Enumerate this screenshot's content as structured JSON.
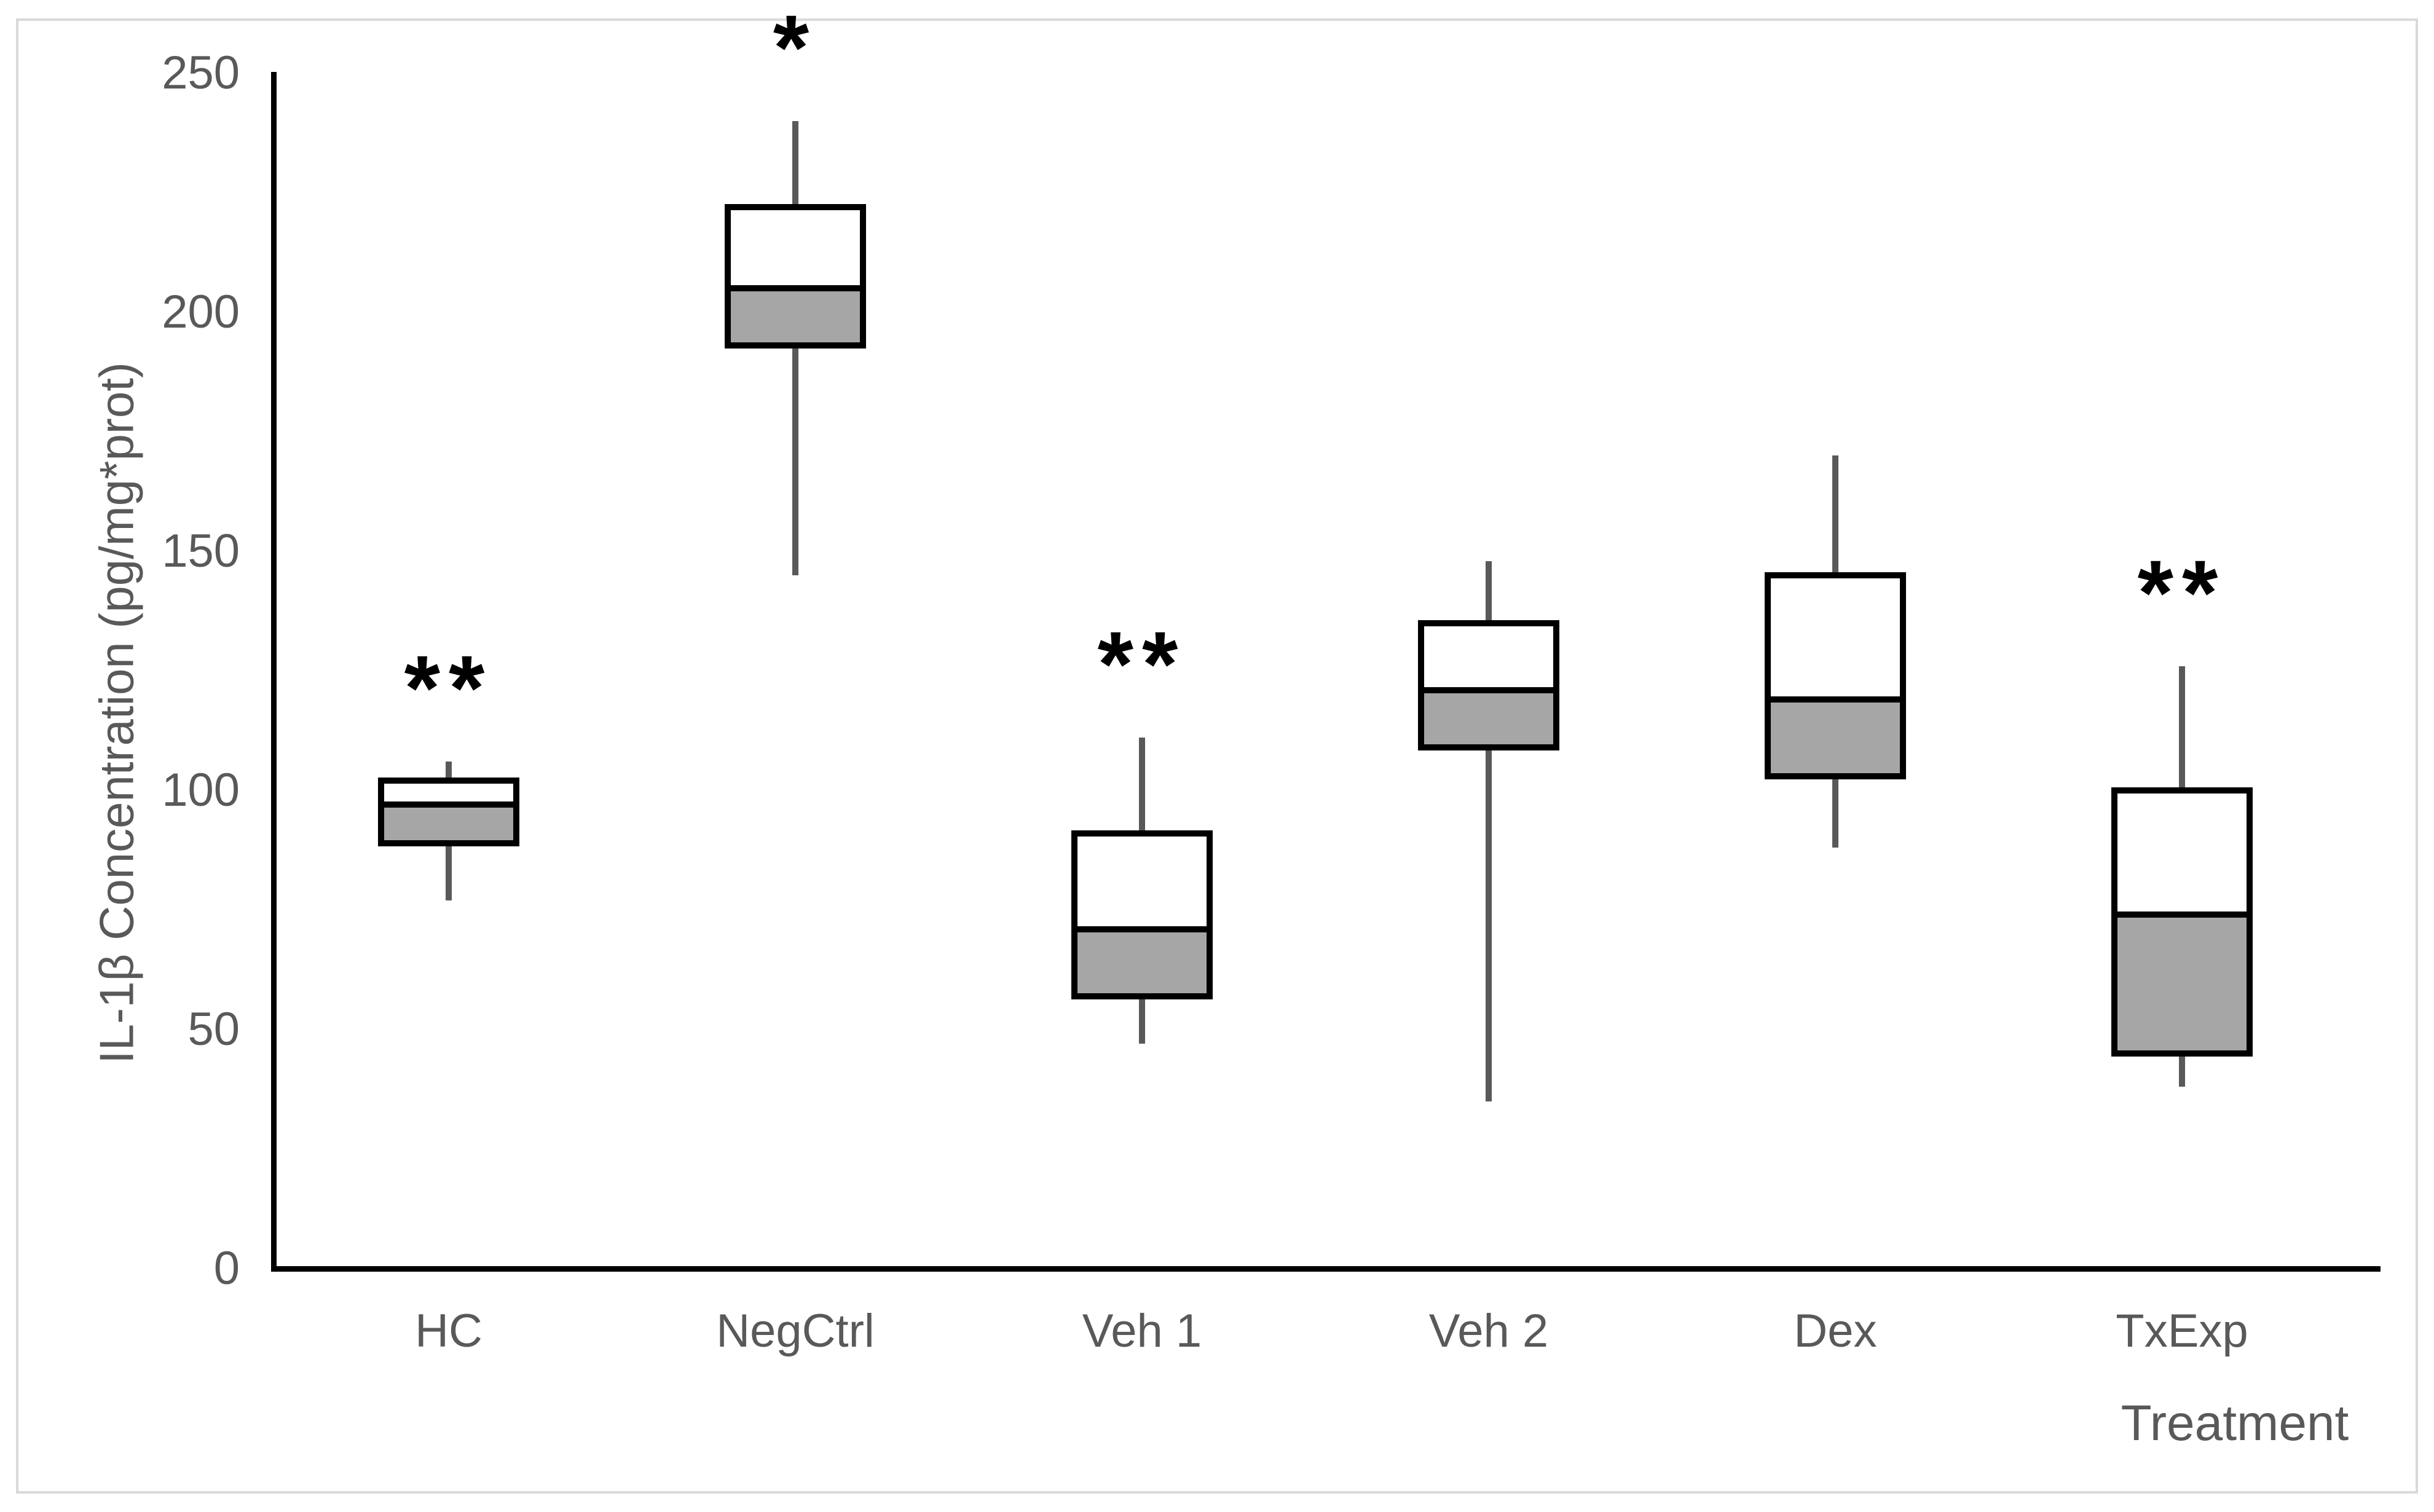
{
  "figure": {
    "background": "#ffffff",
    "border_color": "#d9d9d9"
  },
  "colors": {
    "axis": "#000000",
    "label_text": "#595959",
    "whisker": "#595959",
    "box_border": "#000000",
    "box_fill_lower": "#a6a6a6",
    "box_fill_upper": "#ffffff",
    "significance_star": "#000000"
  },
  "chart_data": {
    "type": "boxplot",
    "title": "",
    "xlabel": "Treatment",
    "ylabel": "IL-1β Concentration (pg/mg*prot)",
    "ylim": [
      0,
      250
    ],
    "yticks": [
      0,
      50,
      100,
      150,
      200,
      250
    ],
    "grid": false,
    "legend": false,
    "whisker_caps": false,
    "categories": [
      "HC",
      "NegCtrl",
      "Veh 1",
      "Veh 2",
      "Dex",
      "TxExp"
    ],
    "series": [
      {
        "name": "HC",
        "whisker_low": 77,
        "q1": 89,
        "median": 97,
        "q3": 102,
        "whisker_high": 106,
        "significance": "**"
      },
      {
        "name": "NegCtrl",
        "whisker_low": 145,
        "q1": 193,
        "median": 205,
        "q3": 222,
        "whisker_high": 240,
        "significance": "*"
      },
      {
        "name": "Veh 1",
        "whisker_low": 47,
        "q1": 57,
        "median": 71,
        "q3": 91,
        "whisker_high": 111,
        "significance": "**"
      },
      {
        "name": "Veh 2",
        "whisker_low": 35,
        "q1": 109,
        "median": 121,
        "q3": 135,
        "whisker_high": 148,
        "significance": ""
      },
      {
        "name": "Dex",
        "whisker_low": 88,
        "q1": 103,
        "median": 119,
        "q3": 145,
        "whisker_high": 170,
        "significance": ""
      },
      {
        "name": "TxExp",
        "whisker_low": 38,
        "q1": 45,
        "median": 74,
        "q3": 100,
        "whisker_high": 126,
        "significance": "**"
      }
    ]
  }
}
